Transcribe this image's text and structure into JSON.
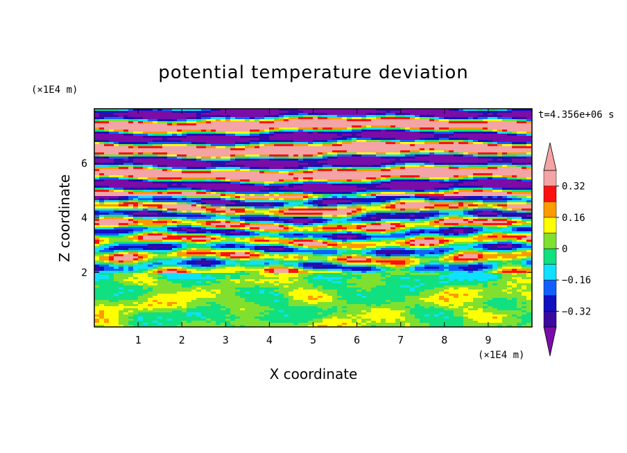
{
  "chart_data": {
    "type": "heatmap",
    "title": "potential temperature deviation",
    "xlabel": "X coordinate",
    "ylabel": "Z coordinate",
    "x_unit": "(×1E4 m)",
    "z_unit": "(×1E4 m)",
    "time_label": "t=4.356e+06 s",
    "xlim": [
      0,
      10
    ],
    "ylim": [
      0,
      8
    ],
    "x_ticks": [
      "1",
      "2",
      "3",
      "4",
      "5",
      "6",
      "7",
      "8",
      "9"
    ],
    "y_ticks": [
      "2",
      "4",
      "6"
    ],
    "colorbar": {
      "levels": [
        -0.4,
        -0.32,
        -0.24,
        -0.16,
        -0.08,
        0,
        0.08,
        0.16,
        0.24,
        0.32,
        0.4
      ],
      "tick_labels": [
        "0.32",
        "0.16",
        "0",
        "−0.16",
        "−0.32"
      ],
      "tick_values": [
        0.32,
        0.16,
        0,
        -0.16,
        -0.32
      ],
      "colors": [
        "#7a0ca8",
        "#3a0aa0",
        "#1010c0",
        "#1060ff",
        "#10e0ff",
        "#10e080",
        "#80e030",
        "#ffff00",
        "#ff9a00",
        "#ff1010",
        "#f4a4a4"
      ],
      "extend": "both"
    },
    "layers": [
      {
        "z_range": [
          0,
          1.95
        ],
        "description_value": "near 0 (green / light green)",
        "dominant": [
          0,
          0.08
        ]
      },
      {
        "z_range": [
          1.95,
          4.8
        ],
        "description_value": "mixed -0.32 to 0.32",
        "dominant": [
          -0.32,
          0.32
        ]
      },
      {
        "z_range": [
          4.8,
          8
        ],
        "description_value": "alternating >0.4 and < -0.4",
        "dominant": [
          -0.4,
          0.4
        ]
      }
    ]
  }
}
